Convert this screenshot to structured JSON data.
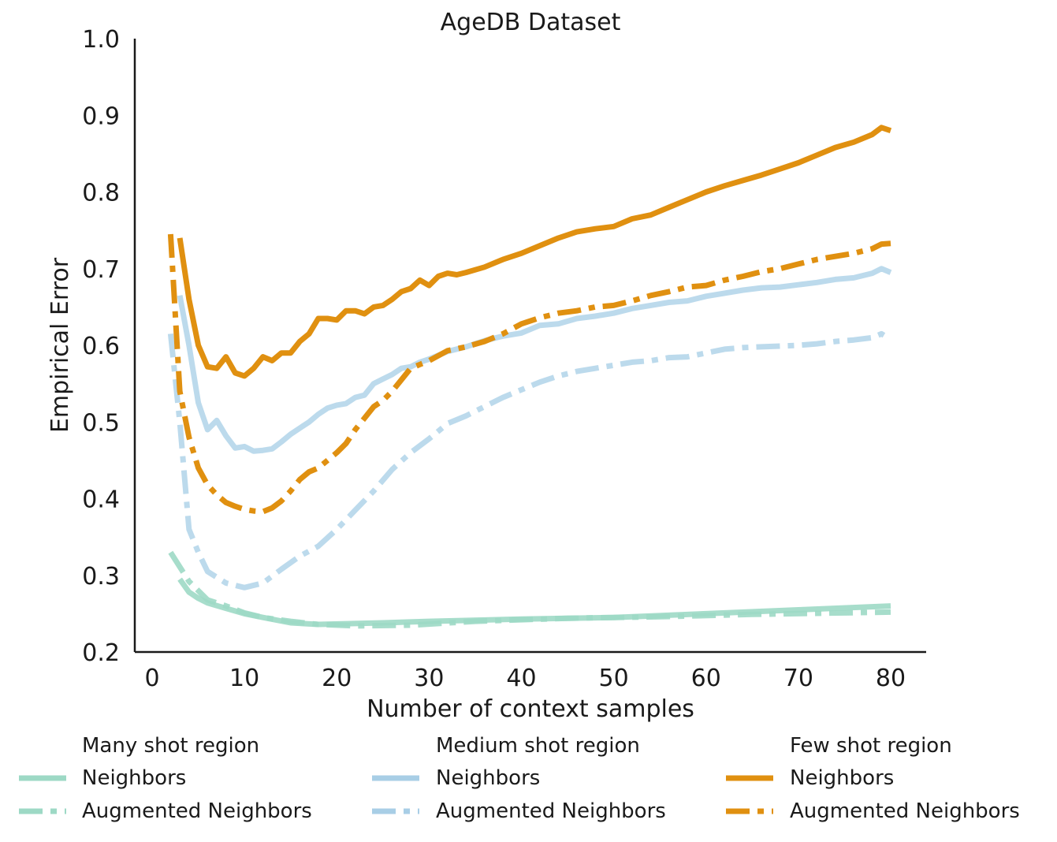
{
  "chart_data": {
    "type": "line",
    "title": "AgeDB Dataset",
    "xlabel": "Number of context samples",
    "ylabel": "Empirical Error",
    "xlim": [
      0,
      84
    ],
    "ylim": [
      0.2,
      1.0
    ],
    "xticks": [
      0,
      10,
      20,
      30,
      40,
      50,
      60,
      70,
      80
    ],
    "yticks": [
      0.2,
      0.3,
      0.4,
      0.5,
      0.6,
      0.7,
      0.8,
      0.9,
      1.0
    ],
    "xtick_labels": [
      "0",
      "10",
      "20",
      "30",
      "40",
      "50",
      "60",
      "70",
      "80"
    ],
    "ytick_labels": [
      "0.2",
      "0.3",
      "0.4",
      "0.5",
      "0.6",
      "0.7",
      "0.8",
      "0.9",
      "1.0"
    ],
    "grid": false,
    "legend_position": "bottom",
    "legend": [
      {
        "group": "Many shot region",
        "entries": [
          "Neighbors",
          "Augmented Neighbors"
        ]
      },
      {
        "group": "Medium shot region",
        "entries": [
          "Neighbors",
          "Augmented Neighbors"
        ]
      },
      {
        "group": "Few shot region",
        "entries": [
          "Neighbors",
          "Augmented Neighbors"
        ]
      }
    ],
    "series": [
      {
        "name": "Many shot region - Neighbors",
        "color": "#9dd9c5",
        "style": "solid",
        "x": [
          3,
          4,
          5,
          6,
          8,
          10,
          12,
          15,
          18,
          25,
          30,
          40,
          50,
          60,
          70,
          80
        ],
        "values": [
          0.295,
          0.278,
          0.27,
          0.264,
          0.257,
          0.25,
          0.245,
          0.238,
          0.236,
          0.238,
          0.24,
          0.243,
          0.245,
          0.25,
          0.255,
          0.26
        ]
      },
      {
        "name": "Many shot region - Augmented Neighbors",
        "color": "#9dd9c5",
        "style": "dashdot",
        "x": [
          2,
          4,
          6,
          8,
          10,
          12,
          15,
          18,
          22,
          28,
          35,
          45,
          55,
          65,
          80
        ],
        "values": [
          0.33,
          0.292,
          0.268,
          0.26,
          0.251,
          0.245,
          0.24,
          0.236,
          0.234,
          0.235,
          0.24,
          0.244,
          0.246,
          0.249,
          0.252
        ]
      },
      {
        "name": "Medium shot region - Neighbors",
        "color": "#b5d6ea",
        "style": "solid",
        "x": [
          3,
          4,
          5,
          6,
          7,
          8,
          9,
          10,
          11,
          12,
          13,
          14,
          15,
          16,
          17,
          18,
          19,
          20,
          21,
          22,
          23,
          24,
          25,
          26,
          27,
          28,
          29,
          30,
          32,
          34,
          36,
          38,
          40,
          42,
          44,
          46,
          48,
          50,
          52,
          54,
          56,
          58,
          60,
          62,
          64,
          66,
          68,
          70,
          72,
          74,
          76,
          78,
          79,
          80
        ],
        "values": [
          0.665,
          0.6,
          0.525,
          0.49,
          0.502,
          0.482,
          0.466,
          0.468,
          0.462,
          0.463,
          0.465,
          0.474,
          0.484,
          0.492,
          0.5,
          0.51,
          0.518,
          0.522,
          0.524,
          0.532,
          0.535,
          0.55,
          0.556,
          0.562,
          0.57,
          0.572,
          0.578,
          0.582,
          0.592,
          0.598,
          0.606,
          0.612,
          0.616,
          0.626,
          0.628,
          0.635,
          0.638,
          0.642,
          0.648,
          0.652,
          0.656,
          0.658,
          0.664,
          0.668,
          0.672,
          0.675,
          0.676,
          0.679,
          0.682,
          0.686,
          0.688,
          0.694,
          0.7,
          0.695
        ]
      },
      {
        "name": "Medium shot region - Augmented Neighbors",
        "color": "#b5d6ea",
        "style": "dashdot",
        "x": [
          2,
          3,
          4,
          5,
          6,
          8,
          10,
          12,
          14,
          16,
          18,
          20,
          22,
          24,
          26,
          28,
          30,
          32,
          34,
          36,
          38,
          40,
          42,
          44,
          46,
          48,
          50,
          52,
          54,
          56,
          58,
          60,
          62,
          64,
          66,
          68,
          70,
          72,
          74,
          76,
          78,
          79,
          80
        ],
        "values": [
          0.615,
          0.5,
          0.36,
          0.33,
          0.305,
          0.29,
          0.284,
          0.29,
          0.308,
          0.325,
          0.338,
          0.36,
          0.385,
          0.41,
          0.438,
          0.46,
          0.478,
          0.498,
          0.508,
          0.52,
          0.532,
          0.542,
          0.552,
          0.56,
          0.566,
          0.57,
          0.574,
          0.578,
          0.58,
          0.584,
          0.585,
          0.59,
          0.595,
          0.597,
          0.598,
          0.599,
          0.6,
          0.602,
          0.605,
          0.607,
          0.61,
          0.615,
          0.608
        ]
      },
      {
        "name": "Few shot region - Neighbors",
        "color": "#e09010",
        "style": "solid",
        "x": [
          3,
          4,
          5,
          6,
          7,
          8,
          9,
          10,
          11,
          12,
          13,
          14,
          15,
          16,
          17,
          18,
          19,
          20,
          21,
          22,
          23,
          24,
          25,
          26,
          27,
          28,
          29,
          30,
          31,
          32,
          33,
          34,
          36,
          38,
          40,
          42,
          44,
          46,
          48,
          50,
          52,
          54,
          56,
          58,
          60,
          62,
          64,
          66,
          68,
          70,
          72,
          74,
          76,
          78,
          79,
          80
        ],
        "values": [
          0.74,
          0.66,
          0.6,
          0.572,
          0.57,
          0.585,
          0.564,
          0.56,
          0.57,
          0.585,
          0.58,
          0.59,
          0.59,
          0.605,
          0.615,
          0.635,
          0.635,
          0.633,
          0.645,
          0.645,
          0.641,
          0.65,
          0.652,
          0.66,
          0.67,
          0.674,
          0.685,
          0.678,
          0.69,
          0.694,
          0.692,
          0.695,
          0.702,
          0.712,
          0.72,
          0.73,
          0.74,
          0.748,
          0.752,
          0.755,
          0.765,
          0.77,
          0.78,
          0.79,
          0.8,
          0.808,
          0.815,
          0.822,
          0.83,
          0.838,
          0.848,
          0.858,
          0.865,
          0.875,
          0.884,
          0.88
        ]
      },
      {
        "name": "Few shot region - Augmented Neighbors",
        "color": "#e09010",
        "style": "dashdot",
        "x": [
          2,
          3,
          4,
          5,
          6,
          7,
          8,
          9,
          10,
          11,
          12,
          13,
          14,
          15,
          16,
          17,
          18,
          19,
          20,
          21,
          22,
          23,
          24,
          25,
          26,
          27,
          28,
          29,
          30,
          32,
          34,
          36,
          38,
          40,
          42,
          44,
          46,
          48,
          50,
          52,
          54,
          56,
          58,
          60,
          62,
          64,
          66,
          68,
          70,
          72,
          74,
          76,
          78,
          79,
          80
        ],
        "values": [
          0.745,
          0.54,
          0.48,
          0.44,
          0.418,
          0.405,
          0.395,
          0.39,
          0.386,
          0.384,
          0.383,
          0.388,
          0.397,
          0.41,
          0.425,
          0.435,
          0.44,
          0.45,
          0.46,
          0.472,
          0.49,
          0.505,
          0.52,
          0.528,
          0.54,
          0.555,
          0.57,
          0.575,
          0.58,
          0.593,
          0.598,
          0.605,
          0.615,
          0.628,
          0.636,
          0.642,
          0.645,
          0.65,
          0.652,
          0.658,
          0.665,
          0.67,
          0.676,
          0.678,
          0.685,
          0.69,
          0.696,
          0.7,
          0.706,
          0.712,
          0.716,
          0.72,
          0.726,
          0.732,
          0.733
        ]
      }
    ]
  }
}
